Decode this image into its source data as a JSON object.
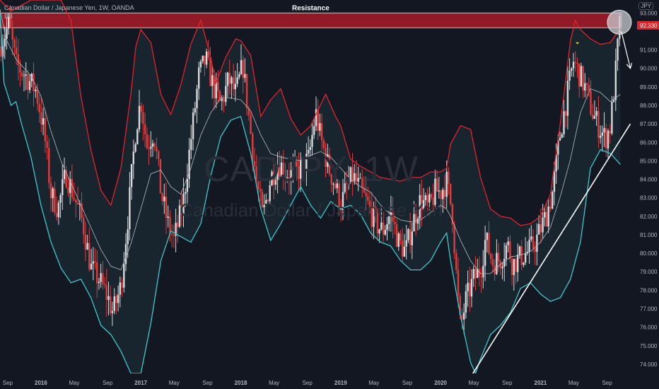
{
  "header": {
    "symbol_line": "Canadian Dollar / Japanese Yen, 1W, OANDA",
    "indicator": "BB",
    "currency_badge": "JPY"
  },
  "watermark": {
    "ticker": "CADJPY, 1W",
    "name": "Canadian Dollar / Japanese Yen"
  },
  "annotations": {
    "resistance_label": "Resistance",
    "current_price_label": "92.330"
  },
  "colors": {
    "background": "#131722",
    "upper_band": "#e0252b",
    "lower_band": "#3ec8cf",
    "basis": "#b9bcc4",
    "candle_up": "#d9d9dc",
    "candle_down": "#e03c3c",
    "resistance_fill": "#9e1c27",
    "trendline": "#ffffff"
  },
  "chart_data": {
    "type": "candlestick",
    "title": "Canadian Dollar / Japanese Yen, 1W, OANDA",
    "ylabel": "",
    "ylim": [
      73.5,
      93.7
    ],
    "y_ticks": [
      "93.000",
      "92.330",
      "91.000",
      "90.000",
      "89.000",
      "88.000",
      "87.000",
      "86.000",
      "85.000",
      "84.000",
      "83.000",
      "82.000",
      "81.000",
      "80.000",
      "79.000",
      "78.000",
      "77.000",
      "76.000",
      "75.000",
      "74.000"
    ],
    "x_ticks": [
      {
        "label": "Sep",
        "x": 2015.667,
        "year": false
      },
      {
        "label": "2016",
        "x": 2016.0,
        "year": true
      },
      {
        "label": "May",
        "x": 2016.333,
        "year": false
      },
      {
        "label": "Sep",
        "x": 2016.667,
        "year": false
      },
      {
        "label": "2017",
        "x": 2017.0,
        "year": true
      },
      {
        "label": "May",
        "x": 2017.333,
        "year": false
      },
      {
        "label": "Sep",
        "x": 2017.667,
        "year": false
      },
      {
        "label": "2018",
        "x": 2018.0,
        "year": true
      },
      {
        "label": "May",
        "x": 2018.333,
        "year": false
      },
      {
        "label": "Sep",
        "x": 2018.667,
        "year": false
      },
      {
        "label": "2019",
        "x": 2019.0,
        "year": true
      },
      {
        "label": "May",
        "x": 2019.333,
        "year": false
      },
      {
        "label": "Sep",
        "x": 2019.667,
        "year": false
      },
      {
        "label": "2020",
        "x": 2020.0,
        "year": true
      },
      {
        "label": "May",
        "x": 2020.333,
        "year": false
      },
      {
        "label": "Sep",
        "x": 2020.667,
        "year": false
      },
      {
        "label": "2021",
        "x": 2021.0,
        "year": true
      },
      {
        "label": "May",
        "x": 2021.333,
        "year": false
      },
      {
        "label": "Sep",
        "x": 2021.667,
        "year": false
      }
    ],
    "price_path": [
      [
        2015.59,
        91.2
      ],
      [
        2015.68,
        92.4
      ],
      [
        2015.75,
        90.2
      ],
      [
        2015.85,
        89.6
      ],
      [
        2015.95,
        88.8
      ],
      [
        2016.03,
        86.6
      ],
      [
        2016.1,
        83.2
      ],
      [
        2016.17,
        82.4
      ],
      [
        2016.25,
        84.3
      ],
      [
        2016.33,
        83.1
      ],
      [
        2016.42,
        81.6
      ],
      [
        2016.5,
        79.2
      ],
      [
        2016.58,
        78.6
      ],
      [
        2016.67,
        77.6
      ],
      [
        2016.72,
        76.8
      ],
      [
        2016.8,
        78.2
      ],
      [
        2016.88,
        82.5
      ],
      [
        2016.95,
        86.8
      ],
      [
        2017.0,
        88.3
      ],
      [
        2017.06,
        85.8
      ],
      [
        2017.13,
        86.6
      ],
      [
        2017.2,
        83.3
      ],
      [
        2017.27,
        81.6
      ],
      [
        2017.33,
        80.7
      ],
      [
        2017.42,
        82.6
      ],
      [
        2017.5,
        86.1
      ],
      [
        2017.58,
        89.6
      ],
      [
        2017.65,
        90.5
      ],
      [
        2017.72,
        89.1
      ],
      [
        2017.8,
        88.0
      ],
      [
        2017.88,
        89.4
      ],
      [
        2017.95,
        88.6
      ],
      [
        2018.02,
        90.2
      ],
      [
        2018.08,
        87.4
      ],
      [
        2018.15,
        84.2
      ],
      [
        2018.22,
        81.9
      ],
      [
        2018.3,
        84.1
      ],
      [
        2018.38,
        84.9
      ],
      [
        2018.45,
        84.4
      ],
      [
        2018.52,
        84.2
      ],
      [
        2018.6,
        84.6
      ],
      [
        2018.68,
        85.1
      ],
      [
        2018.75,
        87.6
      ],
      [
        2018.8,
        86.2
      ],
      [
        2018.88,
        84.6
      ],
      [
        2018.95,
        83.6
      ],
      [
        2019.0,
        82.6
      ],
      [
        2019.05,
        83.4
      ],
      [
        2019.12,
        84.2
      ],
      [
        2019.2,
        83.4
      ],
      [
        2019.28,
        82.5
      ],
      [
        2019.35,
        81.6
      ],
      [
        2019.42,
        81.2
      ],
      [
        2019.5,
        82.2
      ],
      [
        2019.58,
        80.6
      ],
      [
        2019.65,
        80.1
      ],
      [
        2019.72,
        81.6
      ],
      [
        2019.8,
        82.9
      ],
      [
        2019.88,
        82.4
      ],
      [
        2019.95,
        83.4
      ],
      [
        2020.0,
        83.3
      ],
      [
        2020.06,
        83.9
      ],
      [
        2020.12,
        82.1
      ],
      [
        2020.17,
        77.8
      ],
      [
        2020.2,
        75.9
      ],
      [
        2020.25,
        77.4
      ],
      [
        2020.33,
        78.6
      ],
      [
        2020.4,
        79.1
      ],
      [
        2020.45,
        80.8
      ],
      [
        2020.52,
        79.5
      ],
      [
        2020.6,
        79.7
      ],
      [
        2020.67,
        80.5
      ],
      [
        2020.72,
        79.4
      ],
      [
        2020.8,
        79.8
      ],
      [
        2020.88,
        80.1
      ],
      [
        2020.95,
        80.6
      ],
      [
        2021.0,
        81.3
      ],
      [
        2021.06,
        82.1
      ],
      [
        2021.12,
        83.3
      ],
      [
        2021.2,
        86.6
      ],
      [
        2021.27,
        88.6
      ],
      [
        2021.33,
        90.4
      ],
      [
        2021.38,
        89.8
      ],
      [
        2021.45,
        88.9
      ],
      [
        2021.52,
        87.6
      ],
      [
        2021.58,
        86.9
      ],
      [
        2021.65,
        86.2
      ],
      [
        2021.7,
        86.9
      ],
      [
        2021.75,
        89.6
      ],
      [
        2021.79,
        92.3
      ]
    ],
    "bollinger": {
      "upper": [
        [
          2015.59,
          93.7
        ],
        [
          2015.7,
          93.1
        ],
        [
          2015.8,
          93.4
        ],
        [
          2015.9,
          93.7
        ],
        [
          2016.0,
          93.7
        ],
        [
          2016.1,
          93.7
        ],
        [
          2016.2,
          93.7
        ],
        [
          2016.3,
          92.6
        ],
        [
          2016.4,
          88.5
        ],
        [
          2016.5,
          85.6
        ],
        [
          2016.6,
          83.4
        ],
        [
          2016.7,
          82.6
        ],
        [
          2016.8,
          84.6
        ],
        [
          2016.9,
          88.6
        ],
        [
          2016.95,
          91.2
        ],
        [
          2017.0,
          92.1
        ],
        [
          2017.1,
          91.4
        ],
        [
          2017.2,
          88.6
        ],
        [
          2017.3,
          87.5
        ],
        [
          2017.4,
          89.1
        ],
        [
          2017.5,
          91.3
        ],
        [
          2017.6,
          92.6
        ],
        [
          2017.7,
          90.6
        ],
        [
          2017.75,
          89.2
        ],
        [
          2017.85,
          90.6
        ],
        [
          2017.95,
          91.6
        ],
        [
          2018.0,
          91.5
        ],
        [
          2018.1,
          90.7
        ],
        [
          2018.2,
          87.4
        ],
        [
          2018.3,
          88.3
        ],
        [
          2018.4,
          88.9
        ],
        [
          2018.5,
          87.3
        ],
        [
          2018.6,
          86.4
        ],
        [
          2018.7,
          86.9
        ],
        [
          2018.75,
          87.5
        ],
        [
          2018.85,
          88.6
        ],
        [
          2018.95,
          87.4
        ],
        [
          2019.0,
          86.9
        ],
        [
          2019.1,
          85.1
        ],
        [
          2019.2,
          84.7
        ],
        [
          2019.3,
          84.4
        ],
        [
          2019.4,
          84.1
        ],
        [
          2019.5,
          84.0
        ],
        [
          2019.6,
          83.9
        ],
        [
          2019.7,
          84.1
        ],
        [
          2019.8,
          84.1
        ],
        [
          2019.9,
          84.4
        ],
        [
          2020.0,
          84.4
        ],
        [
          2020.06,
          84.6
        ],
        [
          2020.1,
          85.9
        ],
        [
          2020.2,
          86.9
        ],
        [
          2020.3,
          86.7
        ],
        [
          2020.4,
          84.1
        ],
        [
          2020.5,
          82.4
        ],
        [
          2020.6,
          82.0
        ],
        [
          2020.7,
          81.9
        ],
        [
          2020.8,
          81.5
        ],
        [
          2020.9,
          81.6
        ],
        [
          2021.0,
          82.0
        ],
        [
          2021.1,
          83.2
        ],
        [
          2021.2,
          87.1
        ],
        [
          2021.3,
          91.5
        ],
        [
          2021.35,
          92.6
        ],
        [
          2021.4,
          92.1
        ],
        [
          2021.5,
          91.6
        ],
        [
          2021.6,
          91.3
        ],
        [
          2021.7,
          91.4
        ],
        [
          2021.8,
          92.2
        ]
      ],
      "basis": [
        [
          2015.59,
          93.2
        ],
        [
          2015.65,
          91.6
        ],
        [
          2015.75,
          90.5
        ],
        [
          2015.9,
          89.6
        ],
        [
          2016.0,
          88.5
        ],
        [
          2016.1,
          86.6
        ],
        [
          2016.2,
          85.0
        ],
        [
          2016.3,
          83.8
        ],
        [
          2016.4,
          82.6
        ],
        [
          2016.5,
          81.4
        ],
        [
          2016.6,
          80.2
        ],
        [
          2016.7,
          79.3
        ],
        [
          2016.8,
          79.1
        ],
        [
          2016.9,
          80.5
        ],
        [
          2017.0,
          82.4
        ],
        [
          2017.1,
          84.3
        ],
        [
          2017.2,
          84.5
        ],
        [
          2017.3,
          83.6
        ],
        [
          2017.4,
          83.2
        ],
        [
          2017.5,
          84.6
        ],
        [
          2017.6,
          86.4
        ],
        [
          2017.7,
          87.6
        ],
        [
          2017.8,
          88.4
        ],
        [
          2017.9,
          88.4
        ],
        [
          2018.0,
          88.3
        ],
        [
          2018.1,
          87.7
        ],
        [
          2018.2,
          86.4
        ],
        [
          2018.3,
          85.4
        ],
        [
          2018.4,
          85.2
        ],
        [
          2018.5,
          85.1
        ],
        [
          2018.6,
          85.0
        ],
        [
          2018.7,
          85.3
        ],
        [
          2018.8,
          85.5
        ],
        [
          2018.9,
          85.2
        ],
        [
          2019.0,
          84.6
        ],
        [
          2019.1,
          84.0
        ],
        [
          2019.2,
          83.6
        ],
        [
          2019.3,
          83.3
        ],
        [
          2019.4,
          82.6
        ],
        [
          2019.5,
          82.1
        ],
        [
          2019.6,
          81.8
        ],
        [
          2019.7,
          81.7
        ],
        [
          2019.8,
          81.8
        ],
        [
          2019.9,
          82.2
        ],
        [
          2020.0,
          82.6
        ],
        [
          2020.06,
          82.4
        ],
        [
          2020.1,
          82.0
        ],
        [
          2020.2,
          80.7
        ],
        [
          2020.3,
          79.6
        ],
        [
          2020.4,
          78.9
        ],
        [
          2020.5,
          78.9
        ],
        [
          2020.6,
          79.4
        ],
        [
          2020.7,
          79.8
        ],
        [
          2020.8,
          79.9
        ],
        [
          2020.9,
          80.1
        ],
        [
          2021.0,
          80.6
        ],
        [
          2021.1,
          81.4
        ],
        [
          2021.2,
          83.1
        ],
        [
          2021.3,
          85.1
        ],
        [
          2021.4,
          87.6
        ],
        [
          2021.5,
          88.9
        ],
        [
          2021.6,
          88.7
        ],
        [
          2021.7,
          88.2
        ],
        [
          2021.8,
          88.6
        ]
      ],
      "lower": [
        [
          2015.59,
          93.0
        ],
        [
          2015.63,
          89.2
        ],
        [
          2015.7,
          88.0
        ],
        [
          2015.75,
          88.2
        ],
        [
          2015.8,
          87.1
        ],
        [
          2015.9,
          85.2
        ],
        [
          2016.0,
          82.6
        ],
        [
          2016.1,
          80.6
        ],
        [
          2016.2,
          79.2
        ],
        [
          2016.3,
          78.4
        ],
        [
          2016.4,
          78.6
        ],
        [
          2016.5,
          77.6
        ],
        [
          2016.6,
          76.1
        ],
        [
          2016.7,
          75.6
        ],
        [
          2016.8,
          74.7
        ],
        [
          2016.9,
          73.5
        ],
        [
          2016.95,
          73.5
        ],
        [
          2017.0,
          73.5
        ],
        [
          2017.1,
          76.2
        ],
        [
          2017.2,
          79.6
        ],
        [
          2017.3,
          81.2
        ],
        [
          2017.4,
          80.9
        ],
        [
          2017.5,
          80.6
        ],
        [
          2017.6,
          81.6
        ],
        [
          2017.7,
          84.2
        ],
        [
          2017.8,
          86.3
        ],
        [
          2017.9,
          87.2
        ],
        [
          2018.0,
          87.4
        ],
        [
          2018.1,
          85.4
        ],
        [
          2018.2,
          82.4
        ],
        [
          2018.3,
          80.7
        ],
        [
          2018.4,
          81.6
        ],
        [
          2018.5,
          82.6
        ],
        [
          2018.6,
          83.6
        ],
        [
          2018.7,
          82.6
        ],
        [
          2018.8,
          81.9
        ],
        [
          2018.9,
          82.8
        ],
        [
          2019.0,
          82.4
        ],
        [
          2019.1,
          82.6
        ],
        [
          2019.2,
          82.1
        ],
        [
          2019.3,
          81.1
        ],
        [
          2019.4,
          80.6
        ],
        [
          2019.5,
          80.4
        ],
        [
          2019.6,
          79.6
        ],
        [
          2019.7,
          79.1
        ],
        [
          2019.8,
          79.1
        ],
        [
          2019.9,
          79.6
        ],
        [
          2020.0,
          80.6
        ],
        [
          2020.06,
          81.1
        ],
        [
          2020.1,
          79.6
        ],
        [
          2020.2,
          76.6
        ],
        [
          2020.3,
          74.1
        ],
        [
          2020.35,
          73.5
        ],
        [
          2020.4,
          74.3
        ],
        [
          2020.5,
          75.6
        ],
        [
          2020.6,
          76.1
        ],
        [
          2020.7,
          76.8
        ],
        [
          2020.8,
          78.1
        ],
        [
          2020.9,
          78.4
        ],
        [
          2021.0,
          77.8
        ],
        [
          2021.1,
          77.4
        ],
        [
          2021.2,
          77.6
        ],
        [
          2021.3,
          78.6
        ],
        [
          2021.4,
          80.6
        ],
        [
          2021.5,
          84.6
        ],
        [
          2021.6,
          85.6
        ],
        [
          2021.7,
          85.4
        ],
        [
          2021.8,
          84.8
        ]
      ]
    },
    "resistance_zone": {
      "from": 2015.59,
      "to": 2021.81,
      "low": 92.2,
      "high": 93.0
    },
    "trendline": [
      [
        2020.3,
        73.3
      ],
      [
        2021.9,
        87.0
      ]
    ],
    "projection_arrow": [
      [
        2021.81,
        92.0
      ],
      [
        2021.9,
        90.0
      ]
    ]
  }
}
